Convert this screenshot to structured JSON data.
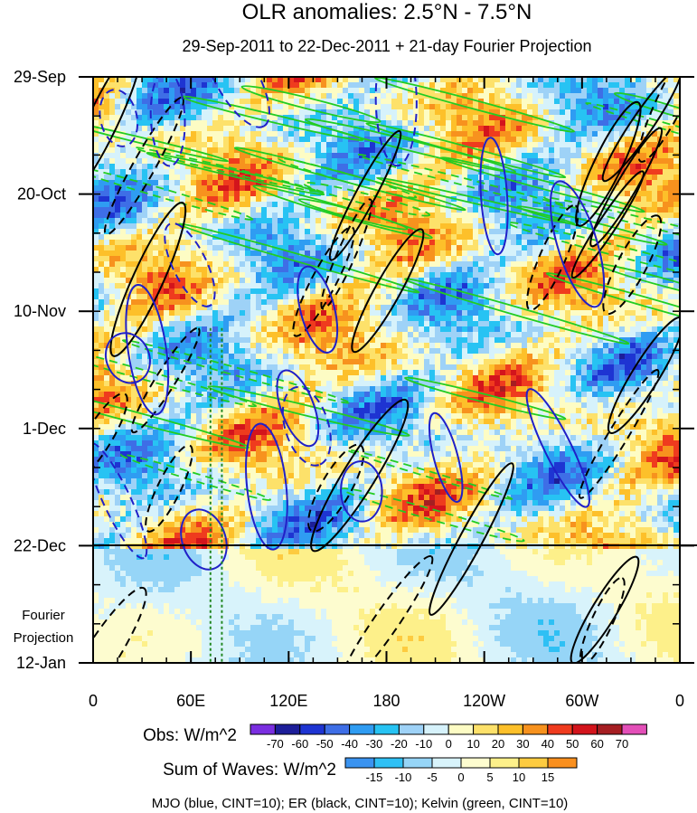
{
  "chart_data": {
    "type": "heatmap",
    "title": "OLR anomalies: 2.5°N - 7.5°N",
    "subtitle": "29-Sep-2011 to 22-Dec-2011 + 21-day Fourier Projection",
    "x_tick_labels": [
      "0",
      "60E",
      "120E",
      "180",
      "120W",
      "60W",
      "0"
    ],
    "x_tick_values_lon": [
      0,
      60,
      120,
      180,
      240,
      300,
      360
    ],
    "xlim_lon": [
      0,
      360
    ],
    "y_tick_labels": [
      "29-Sep",
      "20-Oct",
      "10-Nov",
      "1-Dec",
      "22-Dec",
      "12-Jan"
    ],
    "y_tick_dates": [
      "2011-09-29",
      "2011-10-20",
      "2011-11-10",
      "2011-12-01",
      "2011-12-22",
      "2012-01-12"
    ],
    "ylim_dates": [
      "2011-09-29",
      "2012-01-12"
    ],
    "y_axis_reversed": true,
    "projection_start_date": "2011-12-22",
    "projection_label": [
      "Fourier",
      "Projection"
    ],
    "obs_colorbar": {
      "label": "Obs: W/m^2",
      "levels": [
        -70,
        -60,
        -50,
        -40,
        -30,
        -20,
        -10,
        0,
        10,
        20,
        30,
        40,
        50,
        60,
        70
      ],
      "colors": [
        "#7a2ee0",
        "#1d1e99",
        "#1e34d2",
        "#3e6ee6",
        "#2f9cf2",
        "#27c3f3",
        "#9ed2f7",
        "#d6f2fb",
        "#fdfcc4",
        "#fde16a",
        "#fdc02a",
        "#f7921e",
        "#ef3b1e",
        "#d3141c",
        "#a51e22",
        "#e34fb8"
      ]
    },
    "waves_colorbar": {
      "label": "Sum of Waves: W/m^2",
      "levels": [
        -15,
        -10,
        -5,
        0,
        5,
        10,
        15
      ],
      "colors": [
        "#3a93f0",
        "#2fc0f4",
        "#96d5f7",
        "#d8f3fb",
        "#fdfccf",
        "#fdf08a",
        "#fdcb40",
        "#f98f1e"
      ]
    },
    "footer": "MJO (blue, CINT=10); ER (black, CINT=10); Kelvin (green, CINT=10)",
    "series": [
      {
        "name": "MJO",
        "color": "#2020c8",
        "cint": 10
      },
      {
        "name": "ER",
        "color": "#000000",
        "cint": 10
      },
      {
        "name": "Kelvin",
        "color": "#22cc22",
        "cint": 10
      }
    ],
    "reference_lines_lon": [
      72,
      79
    ],
    "reference_line_color": "#228822"
  }
}
